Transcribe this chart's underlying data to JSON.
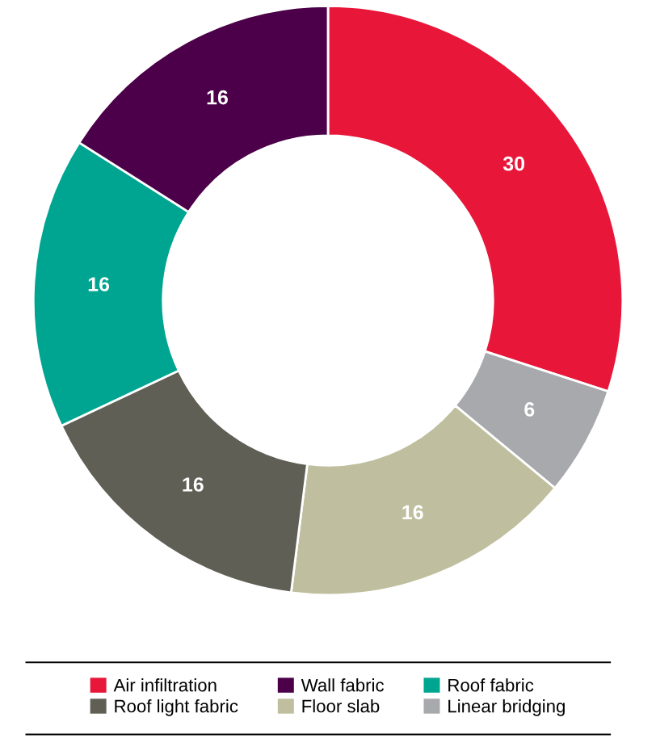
{
  "chart_data": {
    "type": "donut",
    "categories": [
      "Air infiltration",
      "Linear bridging",
      "Floor slab",
      "Roof light fabric",
      "Roof fabric",
      "Wall fabric"
    ],
    "values": [
      30,
      6,
      16,
      16,
      16,
      16
    ],
    "colors": [
      "#e8173a",
      "#a7a9ac",
      "#bfbf9f",
      "#5f5f55",
      "#00a591",
      "#4b0049"
    ],
    "data_labels": true,
    "legend": "bottom"
  }
}
